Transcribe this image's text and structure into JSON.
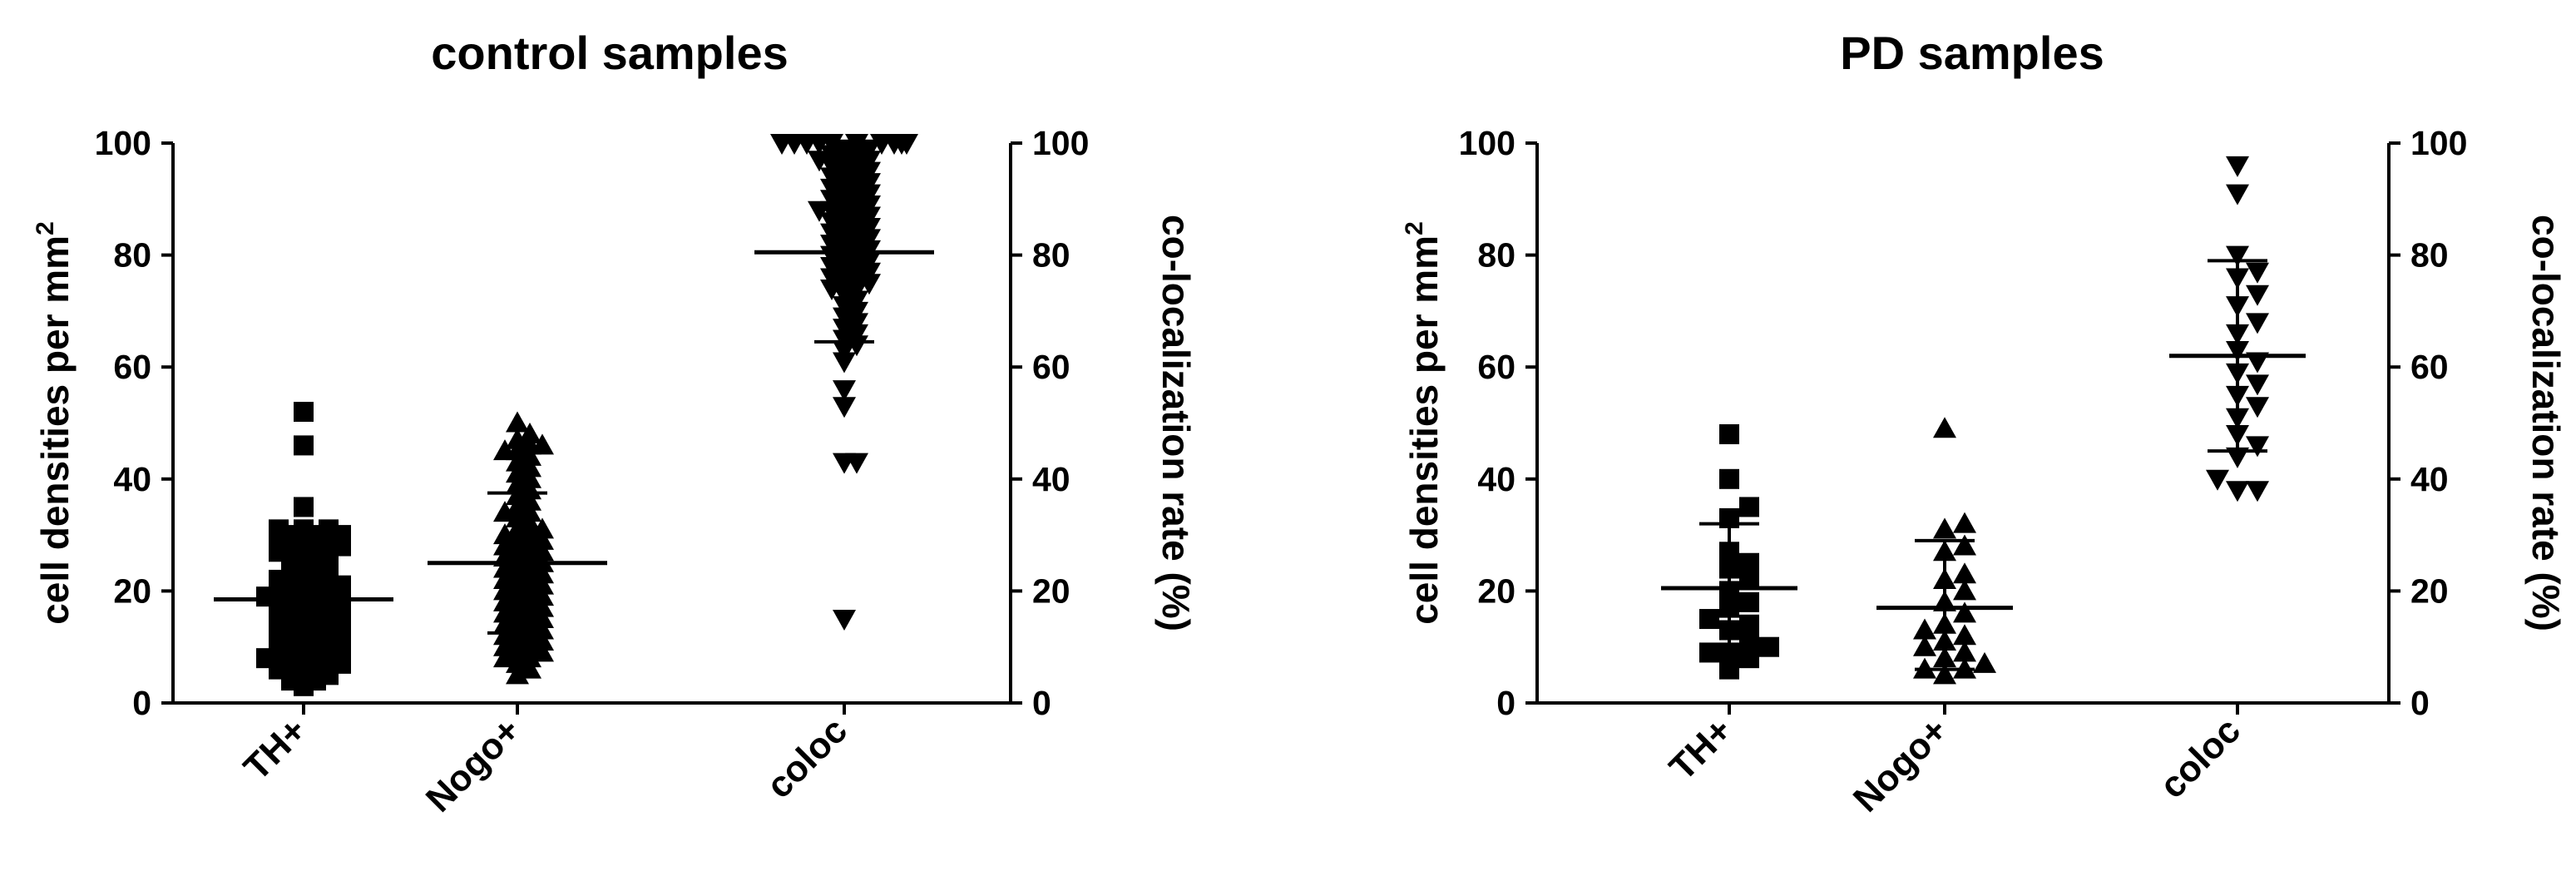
{
  "colors": {
    "ink": "#000000",
    "background": "#ffffff"
  },
  "chart_data": [
    {
      "type": "scatter",
      "title": "control samples",
      "ylabel": "cell densities per mm",
      "ylabel_sup": "2",
      "y2label": "co-localization rate (%)",
      "ylim": [
        0,
        100
      ],
      "y2lim": [
        0,
        100
      ],
      "yticks": [
        "0",
        "20",
        "40",
        "60",
        "80",
        "100"
      ],
      "y2ticks": [
        "0",
        "20",
        "40",
        "60",
        "80",
        "100"
      ],
      "categories": [
        "TH+",
        "Nogo+",
        "coloc"
      ],
      "grid": false,
      "series": [
        {
          "category": "TH+",
          "marker": "square",
          "axis": "left",
          "mean": 18.5,
          "error_low": 9.5,
          "error_high": 27.5,
          "values": [
            52,
            46,
            35,
            31,
            31,
            31,
            30,
            30,
            30,
            29,
            29,
            29,
            28,
            28,
            28,
            27,
            27,
            27,
            26,
            26,
            25,
            25,
            24,
            24,
            23,
            23,
            22,
            22,
            22,
            21,
            21,
            21,
            20,
            20,
            20,
            19,
            19,
            19,
            19,
            18,
            18,
            18,
            17,
            17,
            17,
            16,
            16,
            16,
            15,
            15,
            15,
            14,
            14,
            14,
            13,
            13,
            13,
            12,
            12,
            12,
            11,
            11,
            11,
            10,
            10,
            10,
            9,
            9,
            9,
            8,
            8,
            8,
            8,
            7,
            7,
            7,
            6,
            6,
            6,
            5,
            5,
            4,
            4,
            3
          ]
        },
        {
          "category": "Nogo+",
          "marker": "triangle-up",
          "axis": "left",
          "mean": 25,
          "error_low": 12.5,
          "error_high": 37.5,
          "values": [
            50,
            48,
            47,
            46,
            46,
            45,
            45,
            44,
            43,
            42,
            41,
            40,
            39,
            38,
            37,
            36,
            35,
            34,
            34,
            33,
            32,
            31,
            31,
            30,
            30,
            29,
            29,
            28,
            28,
            27,
            27,
            26,
            26,
            25,
            25,
            24,
            24,
            23,
            23,
            22,
            22,
            21,
            21,
            20,
            20,
            19,
            19,
            18,
            18,
            17,
            17,
            16,
            16,
            15,
            15,
            14,
            14,
            13,
            13,
            12,
            12,
            11,
            11,
            10,
            10,
            9,
            9,
            8,
            8,
            7,
            6,
            5
          ]
        },
        {
          "category": "coloc",
          "marker": "triangle-down",
          "axis": "right",
          "mean": 80.5,
          "error_low": 64.5,
          "error_high": 97,
          "values": [
            100,
            100,
            100,
            100,
            100,
            100,
            100,
            100,
            100,
            100,
            99,
            99,
            98,
            98,
            97,
            97,
            97,
            96,
            96,
            95,
            95,
            94,
            94,
            93,
            93,
            92,
            92,
            91,
            91,
            90,
            90,
            89,
            89,
            88,
            88,
            88,
            87,
            87,
            86,
            86,
            85,
            85,
            84,
            84,
            83,
            83,
            82,
            82,
            81,
            81,
            80,
            80,
            79,
            79,
            78,
            78,
            77,
            77,
            76,
            76,
            75,
            75,
            74,
            74,
            73,
            72,
            71,
            70,
            69,
            68,
            67,
            66,
            65,
            64,
            63,
            61,
            56,
            53,
            43,
            43,
            15
          ]
        }
      ]
    },
    {
      "type": "scatter",
      "title": "PD samples",
      "ylabel": "cell densities per mm",
      "ylabel_sup": "2",
      "y2label": "co-localization rate (%)",
      "ylim": [
        0,
        100
      ],
      "y2lim": [
        0,
        100
      ],
      "yticks": [
        "0",
        "20",
        "40",
        "60",
        "80",
        "100"
      ],
      "y2ticks": [
        "0",
        "20",
        "40",
        "60",
        "80",
        "100"
      ],
      "categories": [
        "TH+",
        "Nogo+",
        "coloc"
      ],
      "grid": false,
      "series": [
        {
          "category": "TH+",
          "marker": "square",
          "axis": "left",
          "mean": 20.5,
          "error_low": 9,
          "error_high": 32,
          "values": [
            48,
            40,
            35,
            33,
            27,
            25,
            24,
            22,
            20,
            18,
            17,
            15,
            14,
            13,
            11,
            10,
            9,
            9,
            8,
            6
          ]
        },
        {
          "category": "Nogo+",
          "marker": "triangle-up",
          "axis": "left",
          "mean": 17,
          "error_low": 6,
          "error_high": 29,
          "values": [
            49,
            32,
            31,
            28,
            27,
            23,
            22,
            20,
            18,
            16,
            14,
            13,
            12,
            11,
            10,
            9,
            8,
            7,
            6,
            6,
            5
          ]
        },
        {
          "category": "coloc",
          "marker": "triangle-down",
          "axis": "right",
          "mean": 62,
          "error_low": 45,
          "error_high": 79,
          "values": [
            96,
            91,
            80,
            77,
            76,
            73,
            71,
            68,
            66,
            63,
            61,
            59,
            57,
            55,
            53,
            51,
            48,
            46,
            44,
            40,
            38,
            38
          ]
        }
      ]
    }
  ]
}
